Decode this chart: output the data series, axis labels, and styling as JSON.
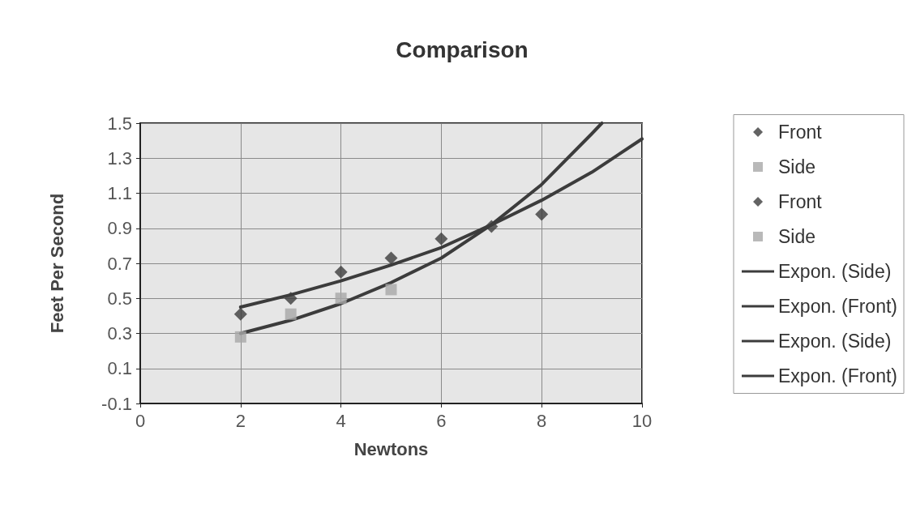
{
  "chart_data": {
    "type": "scatter",
    "title": "Comparison",
    "xlabel": "Newtons",
    "ylabel": "Feet Per Second",
    "xlim": [
      0,
      10
    ],
    "xticks": [
      0,
      2,
      4,
      6,
      8,
      10
    ],
    "ylim": [
      -0.1,
      1.5
    ],
    "yticks": [
      -0.1,
      0.1,
      0.3,
      0.5,
      0.7,
      0.9,
      1.1,
      1.3,
      1.5
    ],
    "grid": true,
    "legend": "right",
    "series": [
      {
        "name": "Front",
        "marker": "diamond",
        "color": "#3c3c3c",
        "x": [
          2,
          3,
          4,
          5,
          6,
          7,
          8
        ],
        "values": [
          0.41,
          0.5,
          0.65,
          0.73,
          0.84,
          0.91,
          0.98
        ]
      },
      {
        "name": "Side",
        "marker": "square",
        "color": "#a8a8a8",
        "x": [
          2,
          3,
          4,
          5
        ],
        "values": [
          0.28,
          0.41,
          0.5,
          0.55
        ]
      },
      {
        "name": "Front",
        "marker": "diamond",
        "color": "#3c3c3c"
      },
      {
        "name": "Side",
        "marker": "square",
        "color": "#a8a8a8"
      },
      {
        "name": "Expon. (Side)",
        "type": "line",
        "marker": "none",
        "line_style": "solid",
        "color": "#3c3c3c",
        "x": [
          2,
          3,
          4,
          5,
          6,
          7,
          8,
          9,
          9.2
        ],
        "values": [
          0.3,
          0.375,
          0.47,
          0.59,
          0.73,
          0.92,
          1.15,
          1.44,
          1.5
        ]
      },
      {
        "name": "Expon. (Front)",
        "type": "line",
        "marker": "none",
        "line_style": "solid",
        "color": "#3c3c3c",
        "x": [
          2,
          3,
          4,
          5,
          6,
          7,
          8,
          9,
          10
        ],
        "values": [
          0.45,
          0.52,
          0.6,
          0.69,
          0.79,
          0.92,
          1.06,
          1.22,
          1.41
        ]
      },
      {
        "name": "Expon. (Side)",
        "type": "line",
        "marker": "none",
        "line_style": "solid",
        "color": "#3c3c3c"
      },
      {
        "name": "Expon. (Front)",
        "type": "line",
        "marker": "none",
        "line_style": "solid",
        "color": "#3c3c3c"
      }
    ]
  }
}
